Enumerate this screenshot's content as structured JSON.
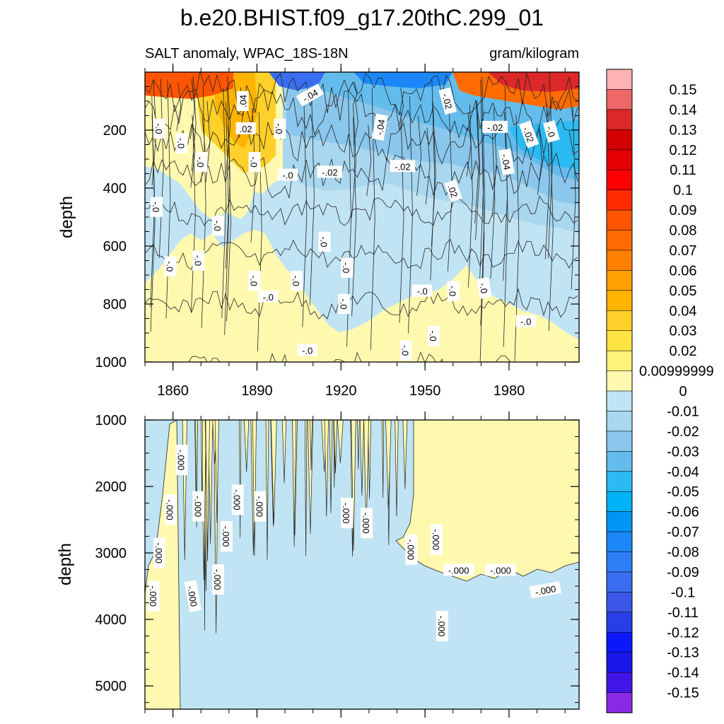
{
  "chart_data": [
    {
      "type": "heatmap",
      "title": "b.e20.BHIST.f09_g17.20thC.299_01",
      "subtitle_left": "SALT anomaly, WPAC_18S-18N",
      "subtitle_right": "gram/kilogram",
      "ylabel": "depth",
      "xlim": [
        1850,
        2005
      ],
      "ylim": [
        0,
        1000
      ],
      "y_inverted": true,
      "x_ticks": [
        "1860",
        "1890",
        "1920",
        "1950",
        "1980"
      ],
      "x_tick_values": [
        1860,
        1890,
        1920,
        1950,
        1980
      ],
      "y_ticks": [
        "200",
        "400",
        "600",
        "800",
        "1000"
      ],
      "y_tick_values": [
        200,
        400,
        600,
        800,
        1000
      ],
      "contour_labels": [
        {
          "text": ".04",
          "x": 1885,
          "y": 100,
          "angle": -90
        },
        {
          "text": "-.04",
          "x": 1909,
          "y": 80,
          "angle": -30
        },
        {
          "text": "-.02",
          "x": 1958,
          "y": 100,
          "angle": 75
        },
        {
          "text": "-.0",
          "x": 1855,
          "y": 195,
          "angle": 90
        },
        {
          "text": ".02",
          "x": 1886,
          "y": 195,
          "angle": 0
        },
        {
          "text": "-.0",
          "x": 1898,
          "y": 195,
          "angle": 90
        },
        {
          "text": "-.04",
          "x": 1934,
          "y": 190,
          "angle": -80
        },
        {
          "text": "-.02",
          "x": 1975,
          "y": 190,
          "angle": 0
        },
        {
          "text": "-.02",
          "x": 1987,
          "y": 215,
          "angle": 70
        },
        {
          "text": "-.0",
          "x": 1995,
          "y": 205,
          "angle": 75
        },
        {
          "text": "-.0",
          "x": 1863,
          "y": 245,
          "angle": 90
        },
        {
          "text": "-.0",
          "x": 1870,
          "y": 310,
          "angle": 90
        },
        {
          "text": "-.0",
          "x": 1889,
          "y": 310,
          "angle": 90
        },
        {
          "text": "-.04",
          "x": 1979,
          "y": 310,
          "angle": 80
        },
        {
          "text": "-.0",
          "x": 1901,
          "y": 355,
          "angle": 0
        },
        {
          "text": "-.02",
          "x": 1916,
          "y": 345,
          "angle": 0
        },
        {
          "text": "-.02",
          "x": 1942,
          "y": 325,
          "angle": 0
        },
        {
          "text": ".02",
          "x": 1960,
          "y": 410,
          "angle": 70
        },
        {
          "text": "-.0",
          "x": 1854,
          "y": 465,
          "angle": 90
        },
        {
          "text": "-.0",
          "x": 1876,
          "y": 530,
          "angle": 90
        },
        {
          "text": "-.0",
          "x": 1914,
          "y": 585,
          "angle": 90
        },
        {
          "text": "-.0",
          "x": 1859,
          "y": 670,
          "angle": 90
        },
        {
          "text": "-.0",
          "x": 1869,
          "y": 650,
          "angle": 90
        },
        {
          "text": "-.0",
          "x": 1922,
          "y": 675,
          "angle": 90
        },
        {
          "text": "-.0",
          "x": 1889,
          "y": 720,
          "angle": 90
        },
        {
          "text": "-.0",
          "x": 1904,
          "y": 720,
          "angle": 90
        },
        {
          "text": "-.0",
          "x": 1949,
          "y": 755,
          "angle": 0
        },
        {
          "text": "-.0",
          "x": 1960,
          "y": 755,
          "angle": 90
        },
        {
          "text": "-.0",
          "x": 1971,
          "y": 745,
          "angle": 80
        },
        {
          "text": "-.0",
          "x": 1894,
          "y": 775,
          "angle": 0
        },
        {
          "text": "-.0",
          "x": 1921,
          "y": 800,
          "angle": 90
        },
        {
          "text": "-.0",
          "x": 1986,
          "y": 860,
          "angle": 0
        },
        {
          "text": "-.0",
          "x": 1953,
          "y": 910,
          "angle": 90
        },
        {
          "text": "-.0",
          "x": 1943,
          "y": 960,
          "angle": 90
        },
        {
          "text": "-.0",
          "x": 1908,
          "y": 960,
          "angle": 0
        }
      ]
    },
    {
      "type": "heatmap",
      "ylabel": "depth",
      "xlim": [
        1850,
        2005
      ],
      "ylim": [
        1000,
        5350
      ],
      "y_inverted": true,
      "y_ticks": [
        "1000",
        "2000",
        "3000",
        "4000",
        "5000"
      ],
      "y_tick_values": [
        1000,
        2000,
        3000,
        4000,
        5000
      ],
      "contour_labels": [
        {
          "text": "-.000",
          "x": 1863,
          "y": 1600,
          "angle": 90
        },
        {
          "text": "-.000",
          "x": 1859,
          "y": 2350,
          "angle": 90
        },
        {
          "text": "-.000",
          "x": 1869,
          "y": 2300,
          "angle": 90
        },
        {
          "text": "-.000",
          "x": 1883,
          "y": 2200,
          "angle": 90
        },
        {
          "text": "-.000",
          "x": 1891,
          "y": 2300,
          "angle": 90
        },
        {
          "text": "-.000",
          "x": 1879,
          "y": 2750,
          "angle": 90
        },
        {
          "text": "-.000",
          "x": 1922,
          "y": 2400,
          "angle": 90
        },
        {
          "text": "-.000",
          "x": 1929,
          "y": 2550,
          "angle": 90
        },
        {
          "text": "-.000",
          "x": 1945,
          "y": 2950,
          "angle": 90
        },
        {
          "text": "-.000",
          "x": 1954,
          "y": 2800,
          "angle": 90
        },
        {
          "text": "-.000",
          "x": 1855,
          "y": 3000,
          "angle": 90
        },
        {
          "text": "-.000",
          "x": 1853,
          "y": 3650,
          "angle": 90
        },
        {
          "text": "-.000",
          "x": 1867,
          "y": 3650,
          "angle": 80
        },
        {
          "text": "-.000",
          "x": 1876,
          "y": 3400,
          "angle": 90
        },
        {
          "text": "-.000",
          "x": 1956,
          "y": 4100,
          "angle": 90
        },
        {
          "text": "-.000",
          "x": 1962,
          "y": 3260,
          "angle": 0
        },
        {
          "text": "-.000",
          "x": 1977,
          "y": 3260,
          "angle": 0
        },
        {
          "text": "-.000",
          "x": 1993,
          "y": 3560,
          "angle": -10
        }
      ]
    }
  ],
  "colorbar": {
    "labels": [
      "0.15",
      "0.14",
      "0.13",
      "0.12",
      "0.11",
      "0.1",
      "0.09",
      "0.08",
      "0.07",
      "0.06",
      "0.05",
      "0.04",
      "0.03",
      "0.02",
      "0.00999999",
      "0",
      "-0.01",
      "-0.02",
      "-0.03",
      "-0.04",
      "-0.05",
      "-0.06",
      "-0.07",
      "-0.08",
      "-0.09",
      "-0.1",
      "-0.11",
      "-0.12",
      "-0.13",
      "-0.14",
      "-0.15"
    ],
    "colors": [
      "#ffb2b2",
      "#ee6868",
      "#dc2828",
      "#d20000",
      "#e40000",
      "#fe0000",
      "#ff2a00",
      "#ff5500",
      "#ff6b00",
      "#ff8000",
      "#ffa000",
      "#ffb400",
      "#ffd029",
      "#ffe342",
      "#fff27a",
      "#fff9b0",
      "#c1e4f4",
      "#a9d7ef",
      "#8bc7ec",
      "#64bced",
      "#2bbaf2",
      "#00b3f6",
      "#0095f4",
      "#1c88f7",
      "#2e7ef6",
      "#3a6ef0",
      "#3a57e8",
      "#2a3ee8",
      "#0a18fb",
      "#1a18e9",
      "#4216e6",
      "#8b2ae6"
    ]
  }
}
